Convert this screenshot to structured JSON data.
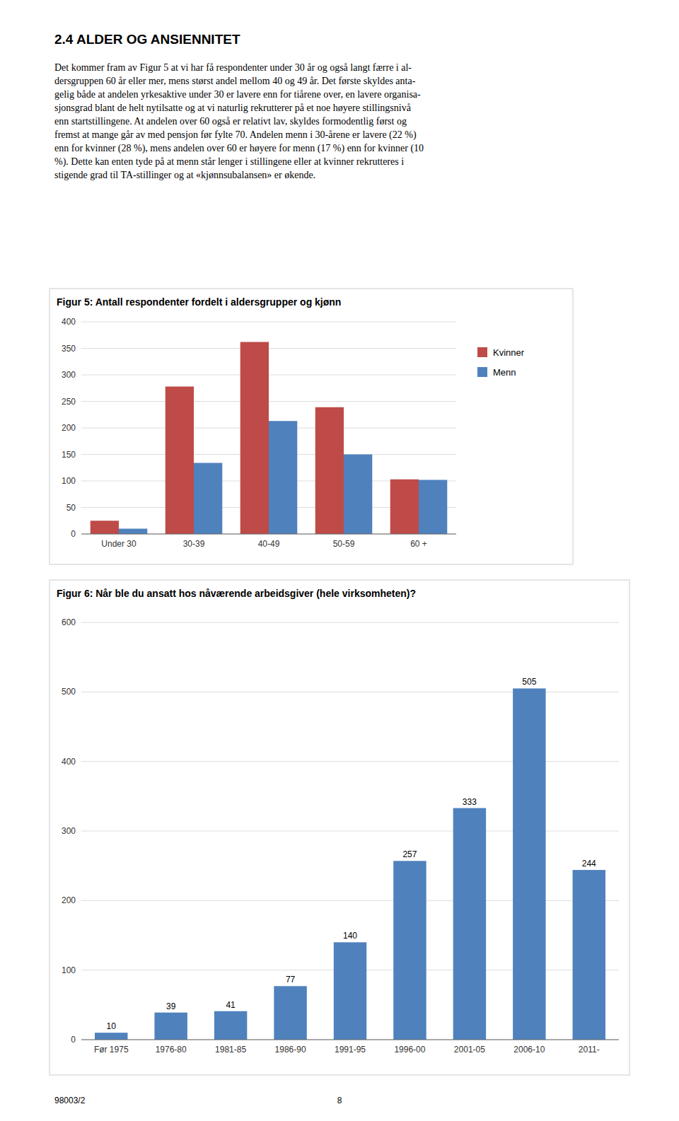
{
  "section_title": "2.4    ALDER OG ANSIENNITET",
  "body_lines": [
    "Det kommer fram av Figur 5 at vi har få respondenter under 30 år og også langt færre i al-",
    "dersgruppen 60 år eller mer, mens størst andel mellom 40 og 49 år. Det første skyldes anta-",
    "gelig både at andelen yrkesaktive under 30 er lavere enn for tiårene over, en lavere organisa-",
    "sjonsgrad blant de helt nytilsatte og at vi naturlig rekrutterer på et noe høyere stillingsnivå",
    "enn startstillingene. At andelen over 60 også er relativt lav, skyldes formodentlig først og",
    "fremst at mange går av med pensjon før fylte 70. Andelen menn i 30-årene er lavere (22 %)",
    "enn for kvinner (28 %), mens andelen over 60 er høyere for menn (17 %) enn for kvinner (10",
    "%). Dette kan enten tyde på at menn står lenger i stillingene eller at kvinner rekrutteres i",
    "stigende grad til TA-stillinger og at «kjønnsubalansen» er økende."
  ],
  "footer_left": "98003/2",
  "footer_right": "8",
  "chart_data": [
    {
      "type": "bar",
      "title": "Figur 5: Antall respondenter fordelt i aldersgrupper og kjønn",
      "categories": [
        "Under 30",
        "30-39",
        "40-49",
        "50-59",
        "60 +"
      ],
      "series": [
        {
          "name": "Kvinner",
          "color": "#be4b48",
          "values": [
            25,
            278,
            362,
            239,
            103
          ]
        },
        {
          "name": "Menn",
          "color": "#4f81bd",
          "values": [
            10,
            134,
            213,
            150,
            102
          ]
        }
      ],
      "ylim": [
        0,
        400
      ],
      "yticks": [
        0,
        50,
        100,
        150,
        200,
        250,
        300,
        350,
        400
      ],
      "grid": true,
      "legend": "right"
    },
    {
      "type": "bar",
      "title": "Figur 6: Når ble du ansatt hos nåværende arbeidsgiver (hele virksomheten)?",
      "categories": [
        "Før 1975",
        "1976-80",
        "1981-85",
        "1986-90",
        "1991-95",
        "1996-00",
        "2001-05",
        "2006-10",
        "2011-"
      ],
      "values": [
        10,
        39,
        41,
        77,
        140,
        257,
        333,
        505,
        244
      ],
      "color": "#4f81bd",
      "ylim": [
        0,
        600
      ],
      "yticks": [
        0,
        100,
        200,
        300,
        400,
        500,
        600
      ],
      "grid": true,
      "data_labels": true
    }
  ]
}
